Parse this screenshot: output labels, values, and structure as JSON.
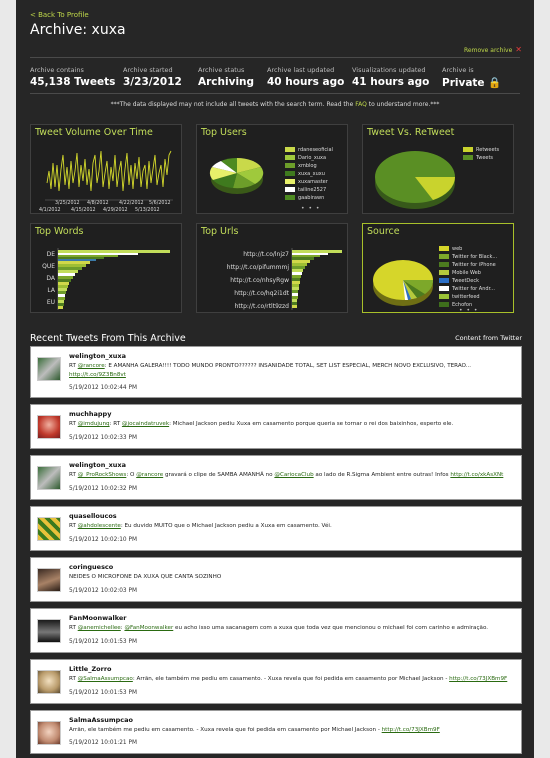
{
  "nav": {
    "back_label": "< Back To Profile"
  },
  "header": {
    "title": "Archive: xuxa",
    "remove_label": "Remove archive",
    "remove_icon": "close-icon"
  },
  "stats": [
    {
      "label": "Archive contains",
      "value": "45,138 Tweets"
    },
    {
      "label": "Archive started",
      "value": "3/23/2012"
    },
    {
      "label": "Archive status",
      "value": "Archiving"
    },
    {
      "label": "Archive last updated",
      "value": "40 hours ago"
    },
    {
      "label": "Visualizations updated",
      "value": "41 hours ago"
    },
    {
      "label": "Archive is",
      "value": "Private",
      "icon": "lock-icon"
    }
  ],
  "notice": {
    "before": "***The data displayed may not include all tweets with the search term. Read the ",
    "link": "FAQ",
    "after": " to understand more.***"
  },
  "colors": {
    "accent": "#c2dd5a",
    "link": "#2a6a11",
    "background": "#262626",
    "selected_border": "#a8c02a"
  },
  "panels": {
    "tweet_volume": {
      "title": "Tweet Volume Over Time",
      "chart_data": {
        "type": "line",
        "x_ticks_row1": [
          "3/25/2012",
          "4/8/2012",
          "4/22/2012",
          "5/6/2012"
        ],
        "x_ticks_row2": [
          "4/1/2012",
          "4/15/2012",
          "4/29/2012",
          "5/13/2012"
        ]
      }
    },
    "top_users": {
      "title": "Top Users",
      "chart_data": {
        "type": "pie",
        "labels": [
          "rdaneseoficial",
          "Dario_xuxa",
          "xmblog",
          "xuxa_xuxu",
          "xuxamaster",
          "tailine2527",
          "gaabirawn"
        ],
        "colors": [
          "#c9d94a",
          "#9fc93c",
          "#6d9e2a",
          "#3f7a1e",
          "#e7f06a",
          "#ffffff",
          "#4d8a20"
        ],
        "more": "• • •"
      }
    },
    "tweet_vs_retweet": {
      "title": "Tweet Vs. ReTweet",
      "chart_data": {
        "type": "pie",
        "labels": [
          "Retweets",
          "Tweets"
        ],
        "colors": [
          "#c9d32d",
          "#5a8f24"
        ]
      }
    },
    "top_words": {
      "title": "Top Words",
      "chart_data": {
        "type": "bar",
        "categories": [
          "DE",
          "QUE",
          "DA",
          "LA",
          "EU"
        ]
      }
    },
    "top_urls": {
      "title": "Top Urls",
      "chart_data": {
        "type": "bar",
        "categories": [
          "http://t.co/lnjz7",
          "http://t.co/pifummmj",
          "http://t.co/nhsyRgw",
          "http://t.co/hq2i1dt",
          "http://t.co/rtlt9zzd"
        ]
      }
    },
    "source": {
      "title": "Source",
      "chart_data": {
        "type": "pie",
        "labels": [
          "web",
          "Twitter for Black...",
          "Twitter for iPhone",
          "Mobile Web",
          "TweetDeck",
          "Twitter for Andr...",
          "twitterfeed",
          "Echofon"
        ],
        "colors": [
          "#d6d62a",
          "#7da82a",
          "#4c7b1f",
          "#b5c93d",
          "#2c6fc7",
          "#ffffff",
          "#9ac236",
          "#3e6e1c"
        ],
        "more": "• • •"
      }
    }
  },
  "recent": {
    "title": "Recent Tweets From This Archive",
    "content_from": "Content from Twitter"
  },
  "tweets": [
    {
      "user": "welington_xuxa",
      "text_before": "RT ",
      "mention": "@rancore",
      "text_after": ": E AMANHA GALERA!!!! TODO MUNDO PRONTO?????? INSANIDADE TOTAL, SET LIST ESPECIAL, MERCH NOVO EXCLUSIVO, TERAO...",
      "link": "http://t.co/9Z3Bn8vt",
      "time": "5/19/2012 10:02:44 PM"
    },
    {
      "user": "muchhappy",
      "text_before": "RT ",
      "mention": "@imdujunq",
      "text_middle": ": RT ",
      "mention2": "@jocaindatruvek",
      "text_after": ": Michael Jackson pediu Xuxa em casamento porque queria se tornar o rei dos baixinhos, esperto ele.",
      "time": "5/19/2012 10:02:33 PM"
    },
    {
      "user": "welington_xuxa",
      "text_before": "RT ",
      "mention": "@_ProRockShows",
      "text_middle": ": O ",
      "mention2": "@rancore",
      "text_middle2": " gravará o clipe de SAMBA AMANHÃ no ",
      "mention3": "@CariocaClub",
      "text_after": " ao lado de R.Sigma Ambient entre outras! Infos ",
      "link": "http://t.co/xkAsXNt",
      "time": "5/19/2012 10:02:32 PM"
    },
    {
      "user": "quaselloucos",
      "text_before": "RT ",
      "mention": "@ahdolescente",
      "text_after": ": Eu duvido MUITO que o Michael Jackson pediu a Xuxa em casamento. Véi.",
      "time": "5/19/2012 10:02:10 PM"
    },
    {
      "user": "coringuesco",
      "text_before": "NEIDES O MICROFONE DA XUXA QUE CANTA SOZINHO",
      "time": "5/19/2012 10:02:03 PM"
    },
    {
      "user": "FanMoonwalker",
      "text_before": "RT ",
      "mention": "@anemichellee",
      "text_middle": ": ",
      "mention2": "@FanMoonwalker",
      "text_after": " eu acho isso uma sacanagem com a xuxa que toda vez que mencionou o michael foi com carinho e admiração.",
      "time": "5/19/2012 10:01:53 PM"
    },
    {
      "user": "Little_Zorro",
      "text_before": "RT ",
      "mention": "@SalmaAssumpcao",
      "text_after": ": Arrãn, ele também me pediu em casamento. - Xuxa revela que foi pedida em casamento por Michael Jackson - ",
      "link": "http://t.co/73JXBm9F",
      "time": "5/19/2012 10:01:53 PM"
    },
    {
      "user": "SalmaAssumpcao",
      "text_before": "Arrãn, ele também me pediu em casamento. - Xuxa revela que foi pedida em casamento por Michael Jackson - ",
      "link": "http://t.co/73JXBm9F",
      "time": "5/19/2012 10:01:21 PM"
    }
  ]
}
